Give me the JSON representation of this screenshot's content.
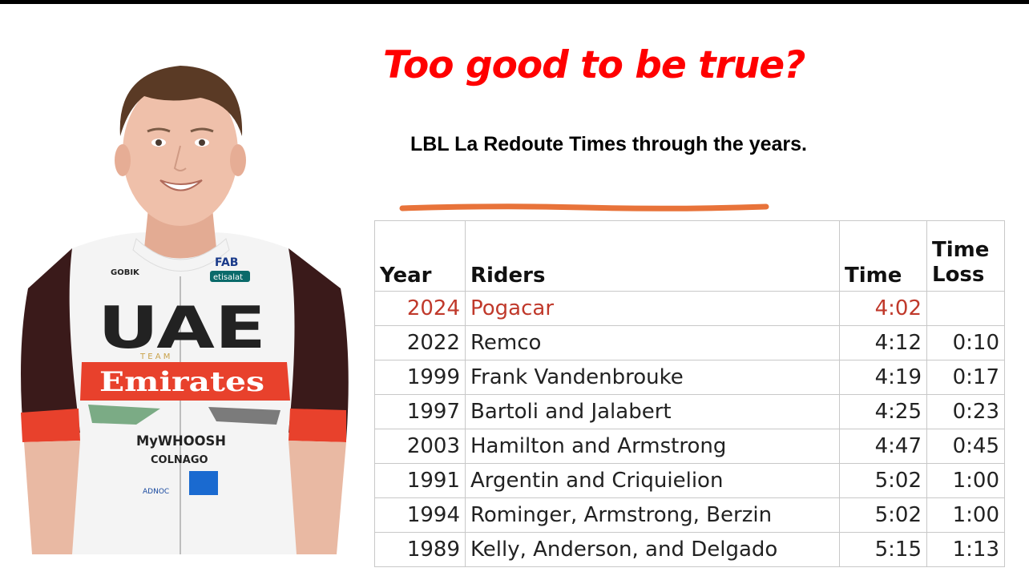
{
  "title": "Too good to be true?",
  "subtitle": "LBL La Redoute Times through the years.",
  "colors": {
    "title": "#ff0000",
    "highlight_row": "#c0392b",
    "underline": "#e8733a",
    "jersey_red": "#e8412c",
    "jersey_sleeve": "#3a1a1a"
  },
  "jersey": {
    "team": "UAE",
    "team_sub": "T E A M",
    "sponsor": "Emirates",
    "partner1": "GOBIK",
    "partner2": "FAB",
    "partner3": "etisalat",
    "partner4": "MyWHOOSH",
    "partner5": "COLNAGO",
    "partner6": "ADNOC"
  },
  "table": {
    "headers": {
      "year": "Year",
      "riders": "Riders",
      "time": "Time",
      "loss_line1": "Time",
      "loss_line2": "Loss"
    },
    "rows": [
      {
        "year": "2024",
        "riders": "Pogacar",
        "time": "4:02",
        "loss": ""
      },
      {
        "year": "2022",
        "riders": "Remco",
        "time": "4:12",
        "loss": "0:10"
      },
      {
        "year": "1999",
        "riders": "Frank Vandenbrouke",
        "time": "4:19",
        "loss": "0:17"
      },
      {
        "year": "1997",
        "riders": "Bartoli and Jalabert",
        "time": "4:25",
        "loss": "0:23"
      },
      {
        "year": "2003",
        "riders": "Hamilton and Armstrong",
        "time": "4:47",
        "loss": "0:45"
      },
      {
        "year": "1991",
        "riders": "Argentin and Criquielion",
        "time": "5:02",
        "loss": "1:00"
      },
      {
        "year": "1994",
        "riders": "Rominger, Armstrong, Berzin",
        "time": "5:02",
        "loss": "1:00"
      },
      {
        "year": "1989",
        "riders": "Kelly, Anderson, and Delgado",
        "time": "5:15",
        "loss": "1:13"
      }
    ]
  }
}
